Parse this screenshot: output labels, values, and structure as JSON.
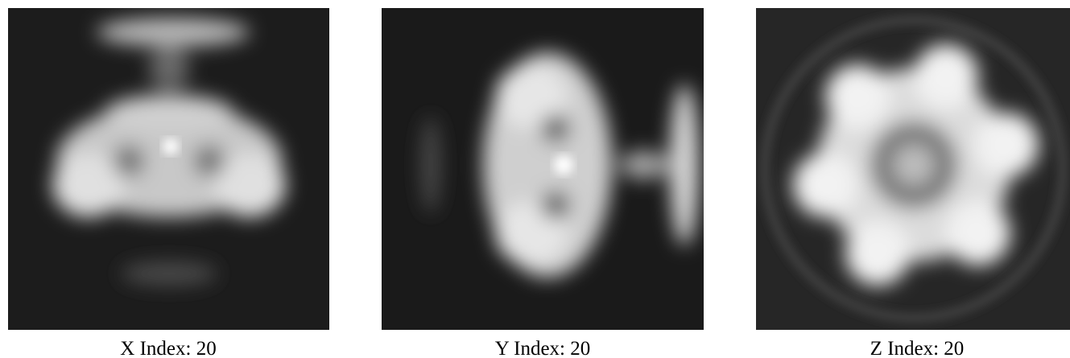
{
  "panels": [
    {
      "caption": "X Index: 20"
    },
    {
      "caption": "Y Index: 20"
    },
    {
      "caption": "Z Index: 20"
    }
  ]
}
